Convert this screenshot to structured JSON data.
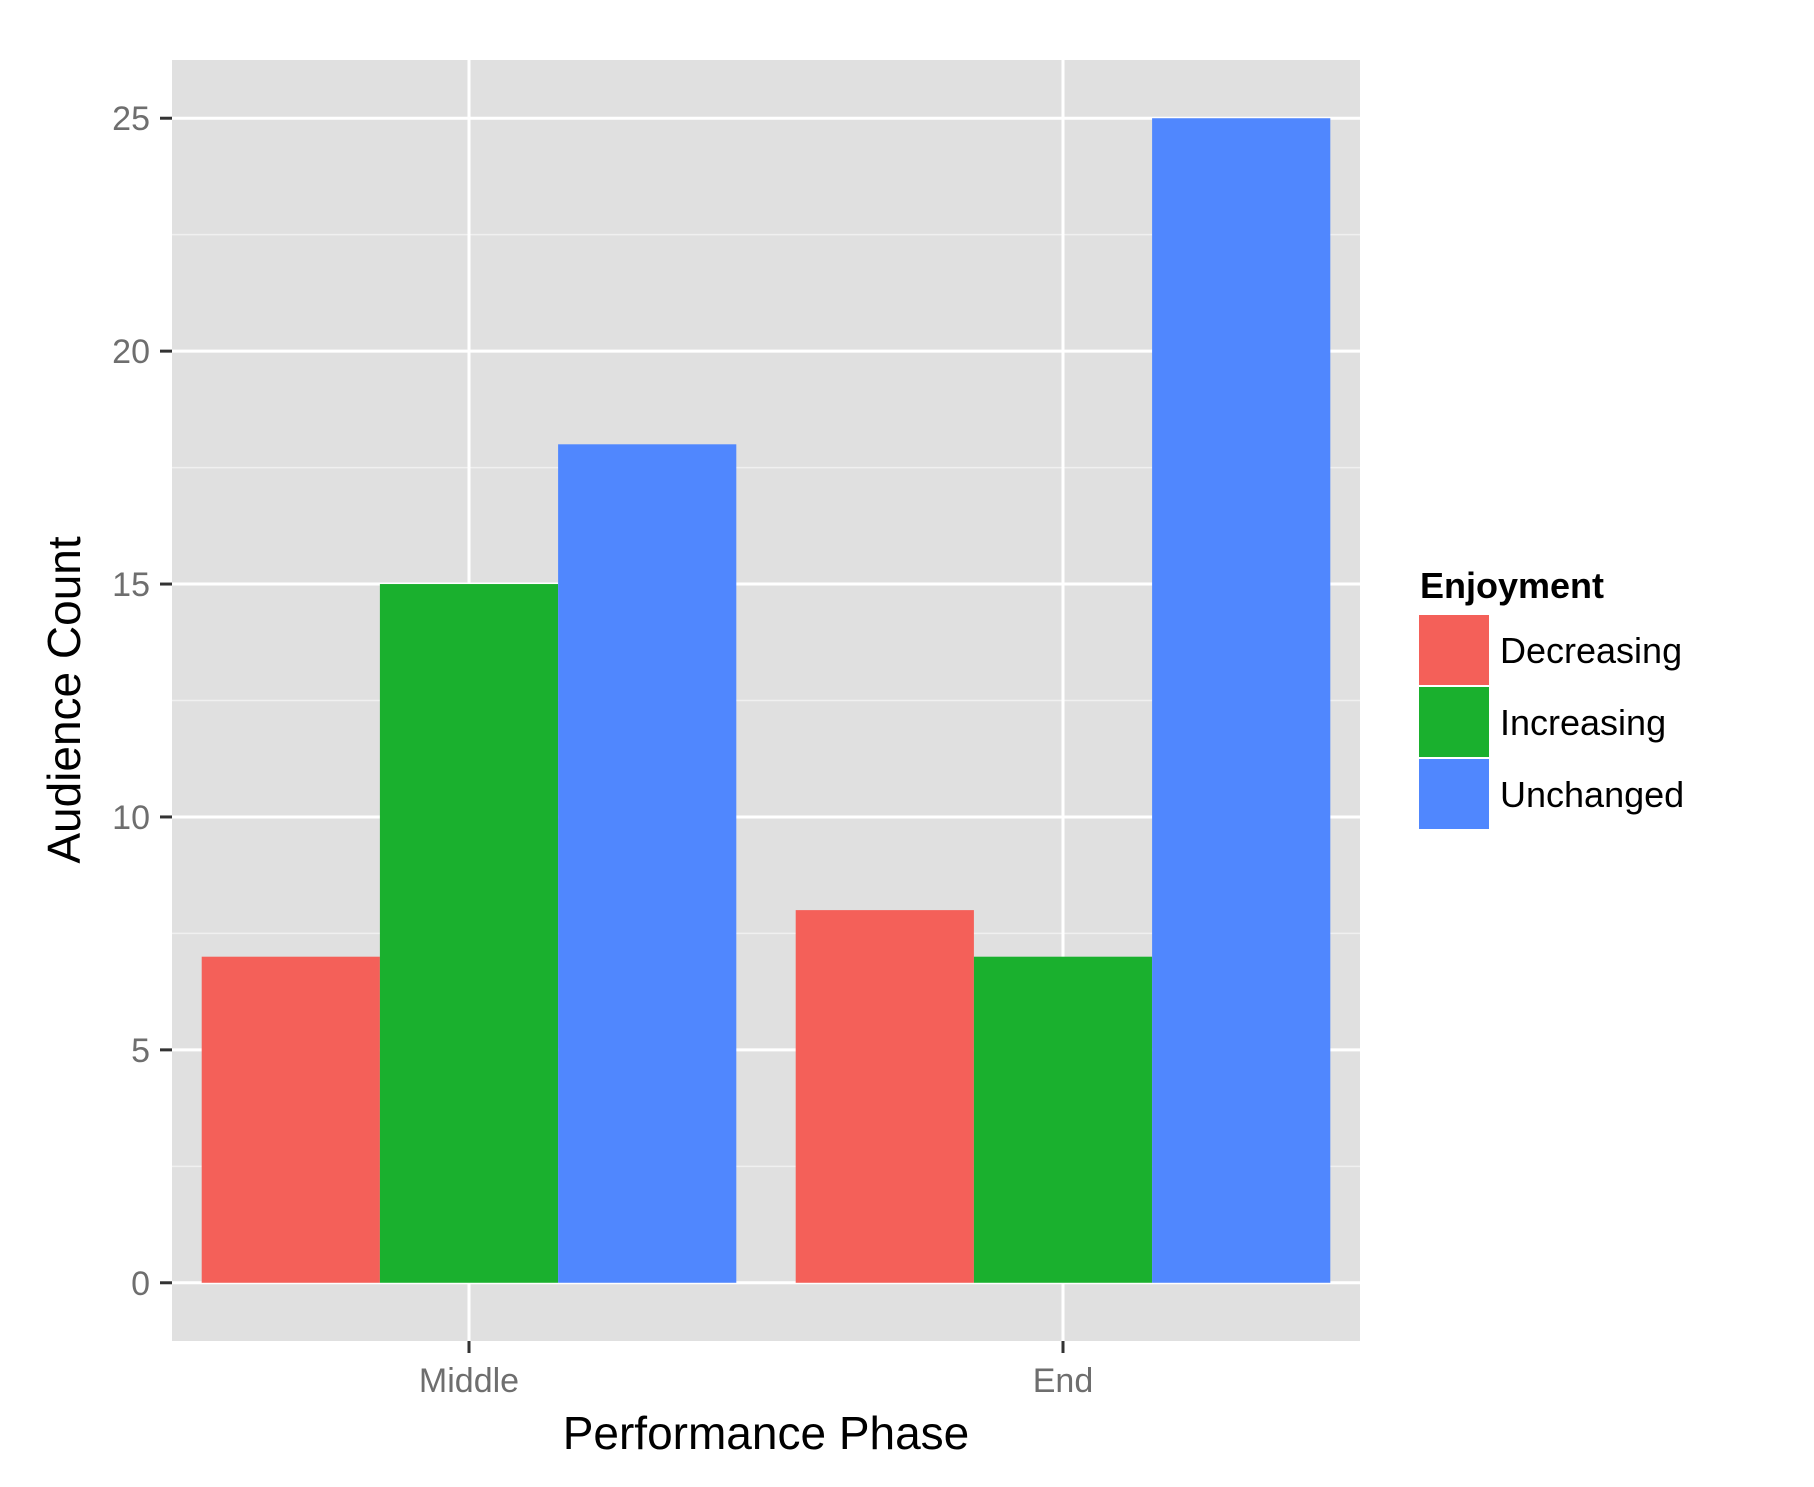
{
  "chart_data": {
    "type": "bar",
    "categories": [
      "Middle",
      "End"
    ],
    "series": [
      {
        "name": "Decreasing",
        "values": [
          7,
          8
        ],
        "color": "#F46059"
      },
      {
        "name": "Increasing",
        "values": [
          15,
          7
        ],
        "color": "#1AB02E"
      },
      {
        "name": "Unchanged",
        "values": [
          18,
          25
        ],
        "color": "#5087FE"
      }
    ],
    "xlabel": "Performance Phase",
    "ylabel": "Audience Count",
    "ylim": [
      -1.25,
      26.25
    ],
    "yticks": [
      0,
      5,
      10,
      15,
      20,
      25
    ],
    "legend": {
      "title": "Enjoyment",
      "position": "right"
    },
    "grid": true,
    "panel_background": "#E0E0E0"
  }
}
